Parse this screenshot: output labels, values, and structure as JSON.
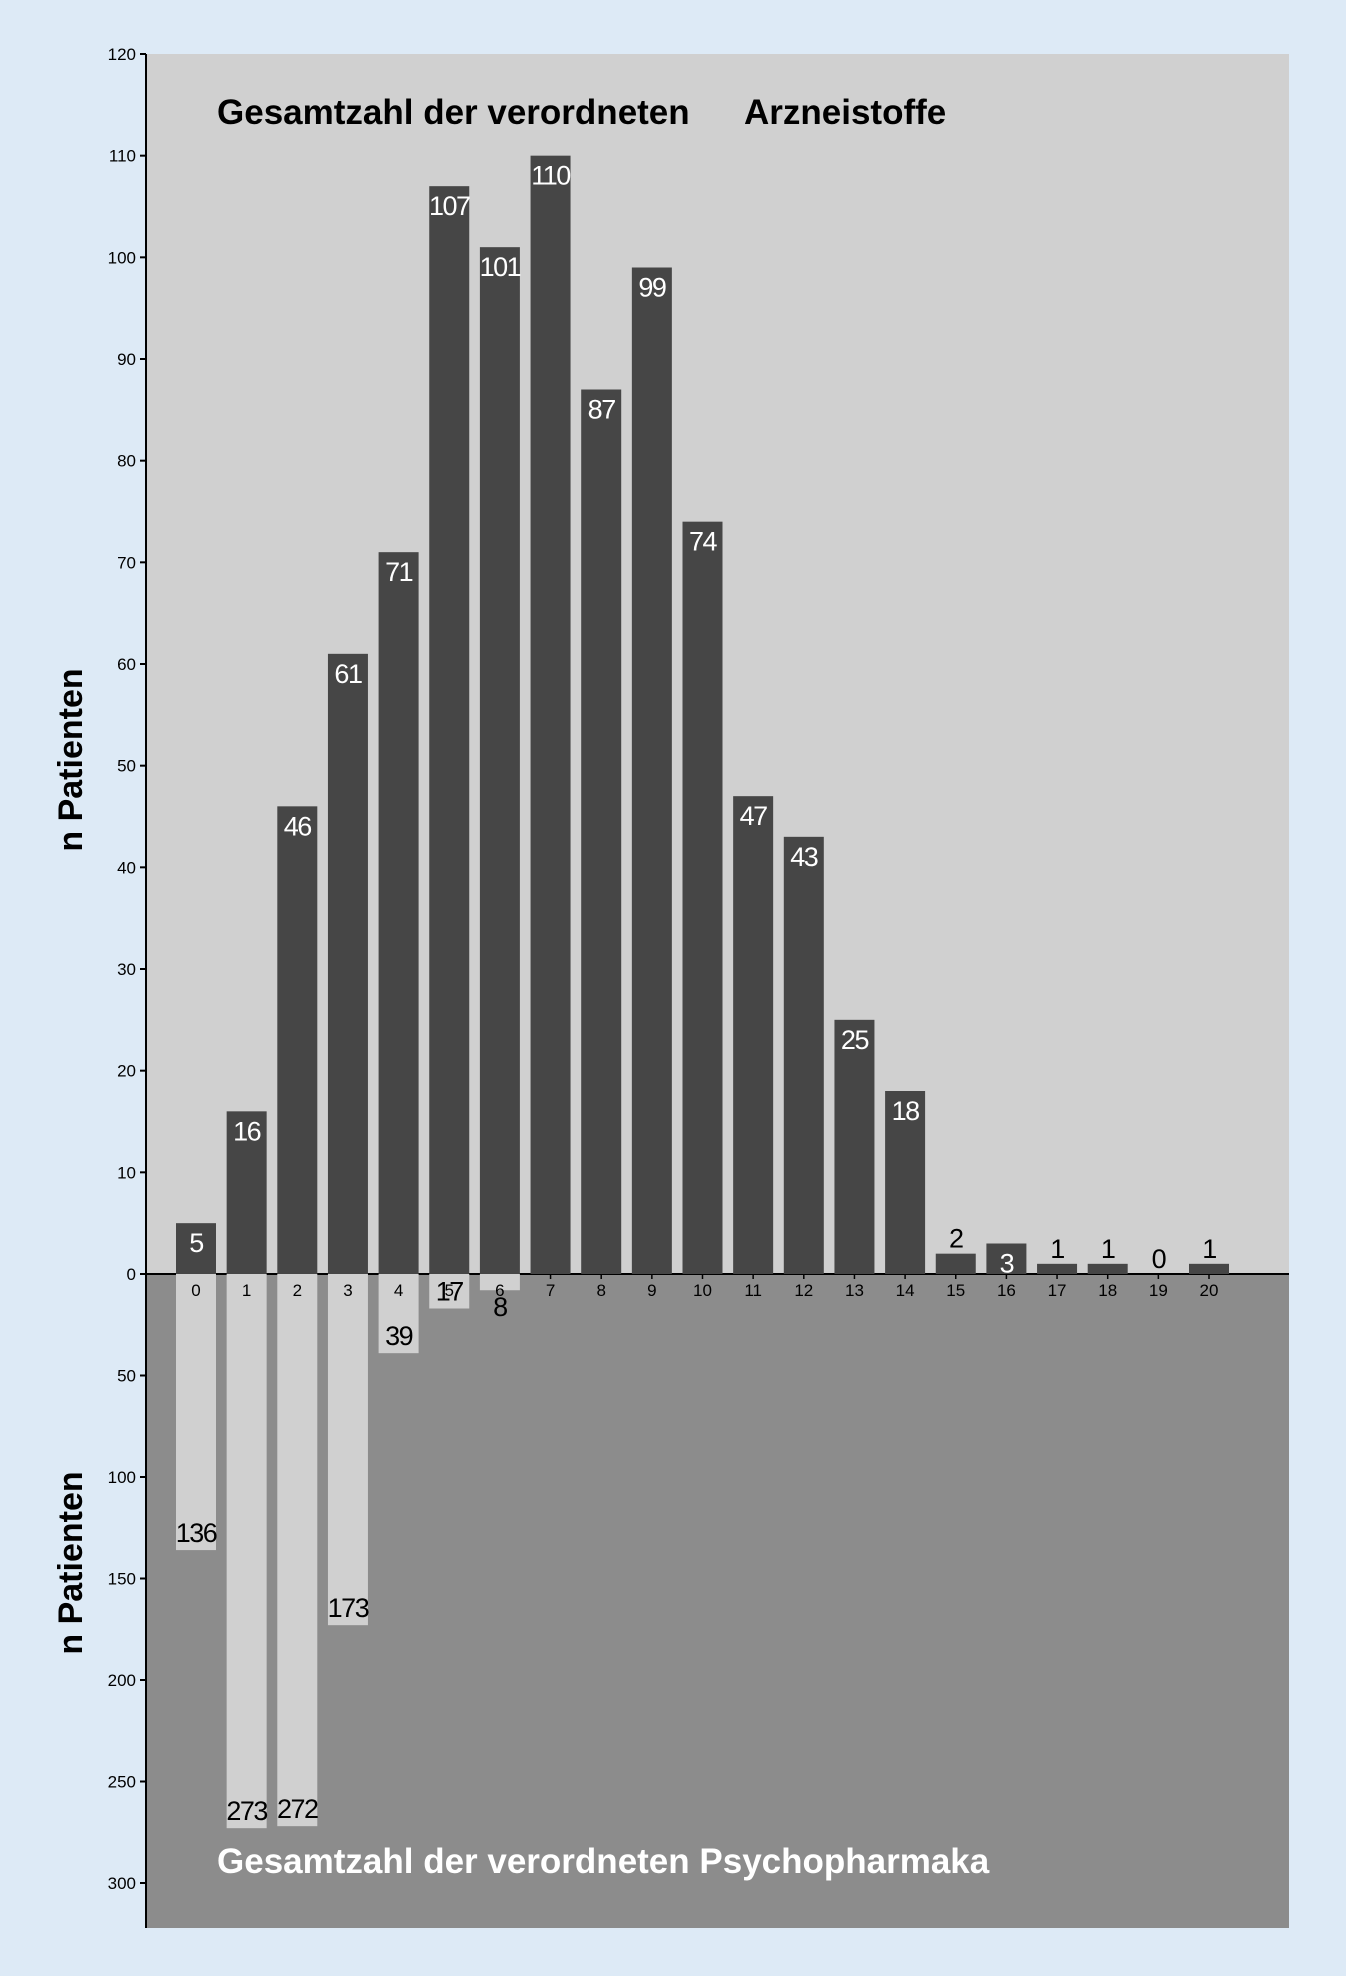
{
  "chart_data": {
    "type": "bar",
    "categories": [
      "0",
      "1",
      "2",
      "3",
      "4",
      "5",
      "6",
      "7",
      "8",
      "9",
      "10",
      "11",
      "12",
      "13",
      "14",
      "15",
      "16",
      "17",
      "18",
      "19",
      "20"
    ],
    "top": {
      "title_part1": "Gesamtzahl der verordneten",
      "title_part2": "Arzneistoffe",
      "ylabel": "n Patienten",
      "ylim": [
        0,
        120
      ],
      "yticks": [
        "0",
        "10",
        "20",
        "30",
        "40",
        "50",
        "60",
        "70",
        "80",
        "90",
        "100",
        "110",
        "120"
      ],
      "values": [
        5,
        16,
        46,
        61,
        71,
        107,
        101,
        110,
        87,
        99,
        74,
        47,
        43,
        25,
        18,
        2,
        3,
        1,
        1,
        0,
        1
      ]
    },
    "bottom": {
      "title": "Gesamtzahl der verordneten Psychopharmaka",
      "ylabel": "n Patienten",
      "ylim": [
        0,
        300
      ],
      "yticks": [
        "50",
        "100",
        "150",
        "200",
        "250",
        "300"
      ],
      "values": [
        136,
        273,
        272,
        173,
        39,
        17,
        8
      ]
    },
    "colors": {
      "top_background": "#d0d0d0",
      "bottom_background": "#8c8c8c",
      "top_bar": "#464646",
      "bottom_bar": "#d0d0d0",
      "page_background": "#ddeaf6"
    }
  }
}
